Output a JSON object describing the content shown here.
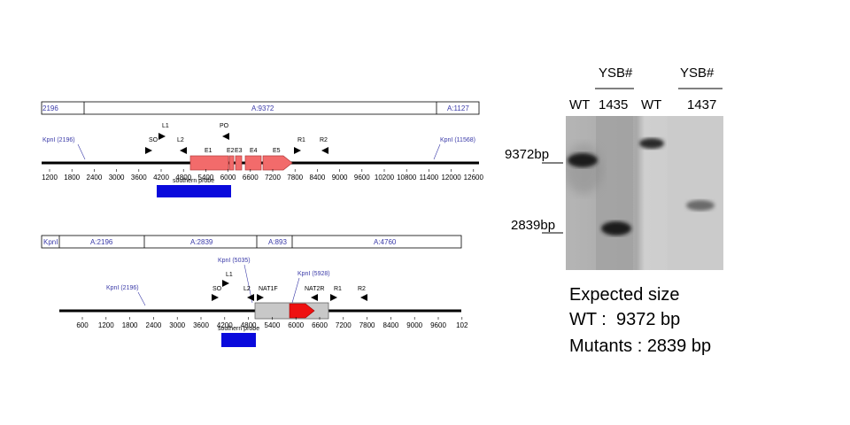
{
  "map_top": {
    "segments": [
      "2196",
      "A:9372",
      "A:1127"
    ],
    "sites": [
      "KpnI (2196)",
      "KpnI (11568)"
    ],
    "primers": [
      "SO",
      "L1",
      "L2",
      "PO",
      "R1",
      "R2"
    ],
    "exons": [
      "E1",
      "E2",
      "E3",
      "E4",
      "E5"
    ],
    "probe_label": "southern probe",
    "axis_ticks": [
      "1200",
      "1800",
      "2400",
      "3000",
      "3600",
      "4200",
      "4800",
      "5400",
      "6000",
      "6600",
      "7200",
      "7800",
      "8400",
      "9000",
      "9600",
      "10200",
      "10800",
      "11400",
      "12000",
      "12600"
    ]
  },
  "map_bottom": {
    "segments": [
      "KpnI",
      "A:2196",
      "A:2839",
      "A:893",
      "A:4760"
    ],
    "sites": [
      "KpnI (2196)",
      "KpnI (5035)",
      "KpnI (5928)"
    ],
    "primers": [
      "SO",
      "L1",
      "L2",
      "NAT1F",
      "NAT2R",
      "R1",
      "R2"
    ],
    "probe_label": "southern probe",
    "axis_ticks": [
      "600",
      "1200",
      "1800",
      "2400",
      "3000",
      "3600",
      "4200",
      "4800",
      "5400",
      "6000",
      "6600",
      "7200",
      "7800",
      "8400",
      "9000",
      "9600",
      "102"
    ]
  },
  "gel": {
    "group_label_1": "YSB#",
    "group_label_2": "YSB#",
    "lanes": [
      "WT",
      "1435",
      "WT",
      "1437"
    ],
    "markers": [
      "9372bp",
      "2839bp"
    ]
  },
  "legend": {
    "title": "Expected size",
    "wt_line": "WT :  9372 bp",
    "mutant_line": "Mutants : 2839 bp"
  },
  "colors": {
    "exon": "#f26b6b",
    "nat_gray": "#c8c8c8",
    "nat_red": "#ee1111",
    "probe": "#0a0adc",
    "label_blue": "#3a3aa8"
  }
}
